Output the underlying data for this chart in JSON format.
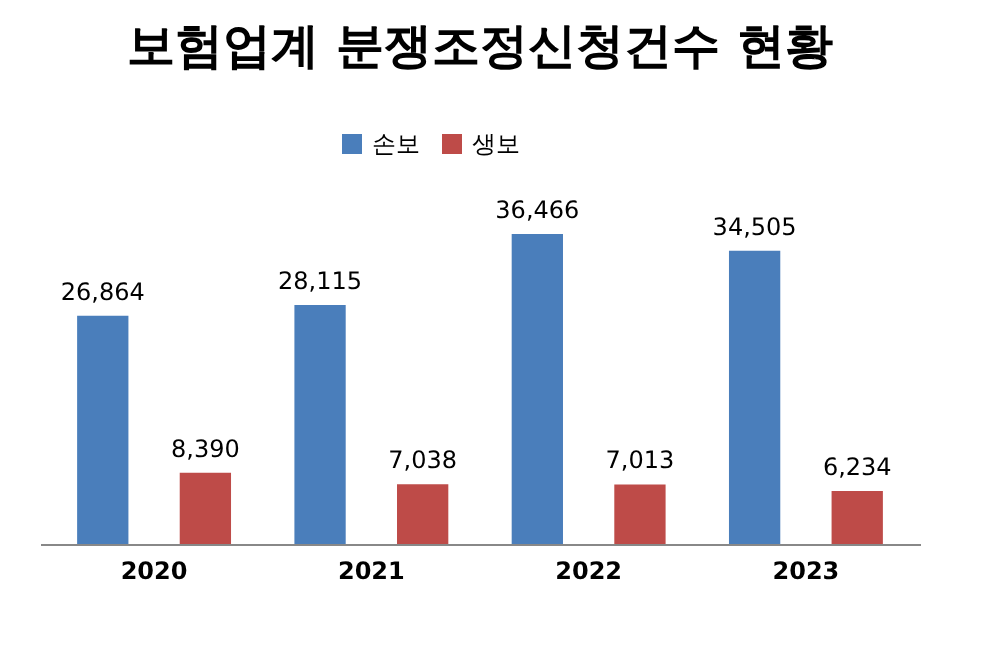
{
  "chart_data": {
    "type": "bar",
    "title": "보험업계 분쟁조정신청건수 현황",
    "categories": [
      "2020",
      "2021",
      "2022",
      "2023"
    ],
    "series": [
      {
        "name": "손보",
        "color": "#4a7ebb",
        "values": [
          26864,
          28115,
          36466,
          34505
        ],
        "value_labels": [
          "26,864",
          "28,115",
          "36,466",
          "34,505"
        ]
      },
      {
        "name": "생보",
        "color": "#be4b48",
        "values": [
          8390,
          7038,
          7013,
          6234
        ],
        "value_labels": [
          "8,390",
          "7,038",
          "7,013",
          "6,234"
        ]
      }
    ],
    "legend": "top"
  }
}
